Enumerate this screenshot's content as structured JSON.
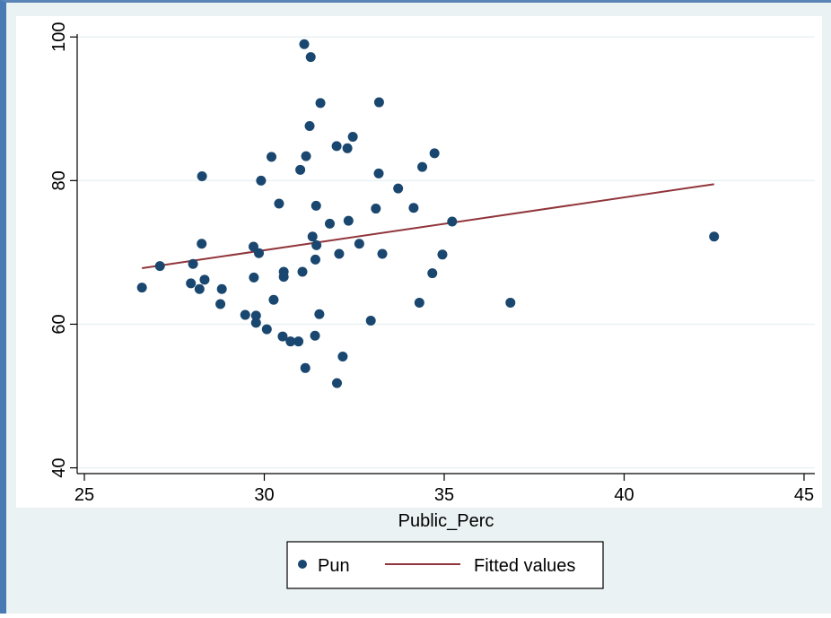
{
  "colors": {
    "window_border": "#4a7ab3",
    "outer_background": "#eaf2f3",
    "plot_background": "#ffffff",
    "gridline": "#eaf2f3",
    "point": "#1a476f",
    "fit_line": "#90353b"
  },
  "chart_data": {
    "type": "scatter",
    "title": "",
    "xlabel": "Public_Perc",
    "ylabel": "",
    "xlim": [
      24.8,
      45.3
    ],
    "ylim": [
      39.2,
      100.4
    ],
    "xticks": [
      25,
      30,
      35,
      40,
      45
    ],
    "yticks": [
      40,
      60,
      80,
      100
    ],
    "grid": "horizontal",
    "legend_position": "bottom-center",
    "series": [
      {
        "name": "Pun",
        "kind": "scatter",
        "x": [
          26.6,
          27.1,
          27.96,
          28.02,
          28.2,
          28.26,
          28.27,
          28.34,
          28.78,
          28.82,
          29.47,
          29.7,
          29.71,
          29.77,
          29.77,
          29.85,
          29.91,
          30.07,
          30.2,
          30.26,
          30.41,
          30.51,
          30.54,
          30.54,
          30.73,
          30.95,
          31.0,
          31.06,
          31.11,
          31.14,
          31.16,
          31.26,
          31.29,
          31.34,
          31.41,
          31.42,
          31.44,
          31.45,
          31.53,
          31.56,
          31.82,
          32.01,
          32.02,
          32.08,
          32.18,
          32.31,
          32.34,
          32.46,
          32.64,
          32.96,
          33.1,
          33.18,
          33.19,
          33.28,
          33.72,
          34.15,
          34.31,
          34.39,
          34.67,
          34.73,
          34.95,
          35.22,
          36.84,
          42.5
        ],
        "y": [
          65.1,
          68.1,
          65.7,
          68.4,
          64.9,
          71.2,
          80.6,
          66.2,
          62.8,
          64.9,
          61.3,
          70.8,
          66.5,
          61.2,
          60.2,
          69.9,
          80.0,
          59.3,
          83.3,
          63.4,
          76.8,
          58.3,
          67.3,
          66.6,
          57.6,
          57.6,
          81.5,
          67.3,
          99.0,
          53.9,
          83.4,
          87.6,
          97.2,
          72.2,
          58.4,
          69.0,
          76.5,
          71.0,
          61.4,
          90.8,
          74.0,
          84.8,
          51.8,
          69.8,
          55.5,
          84.5,
          74.4,
          86.1,
          71.2,
          60.5,
          76.1,
          81.0,
          90.9,
          69.8,
          78.9,
          76.2,
          63.0,
          81.9,
          67.1,
          83.8,
          69.7,
          74.3,
          63.0,
          72.2
        ]
      },
      {
        "name": "Fitted values",
        "kind": "line",
        "x": [
          26.6,
          42.5
        ],
        "y": [
          67.8,
          79.5
        ]
      }
    ]
  }
}
